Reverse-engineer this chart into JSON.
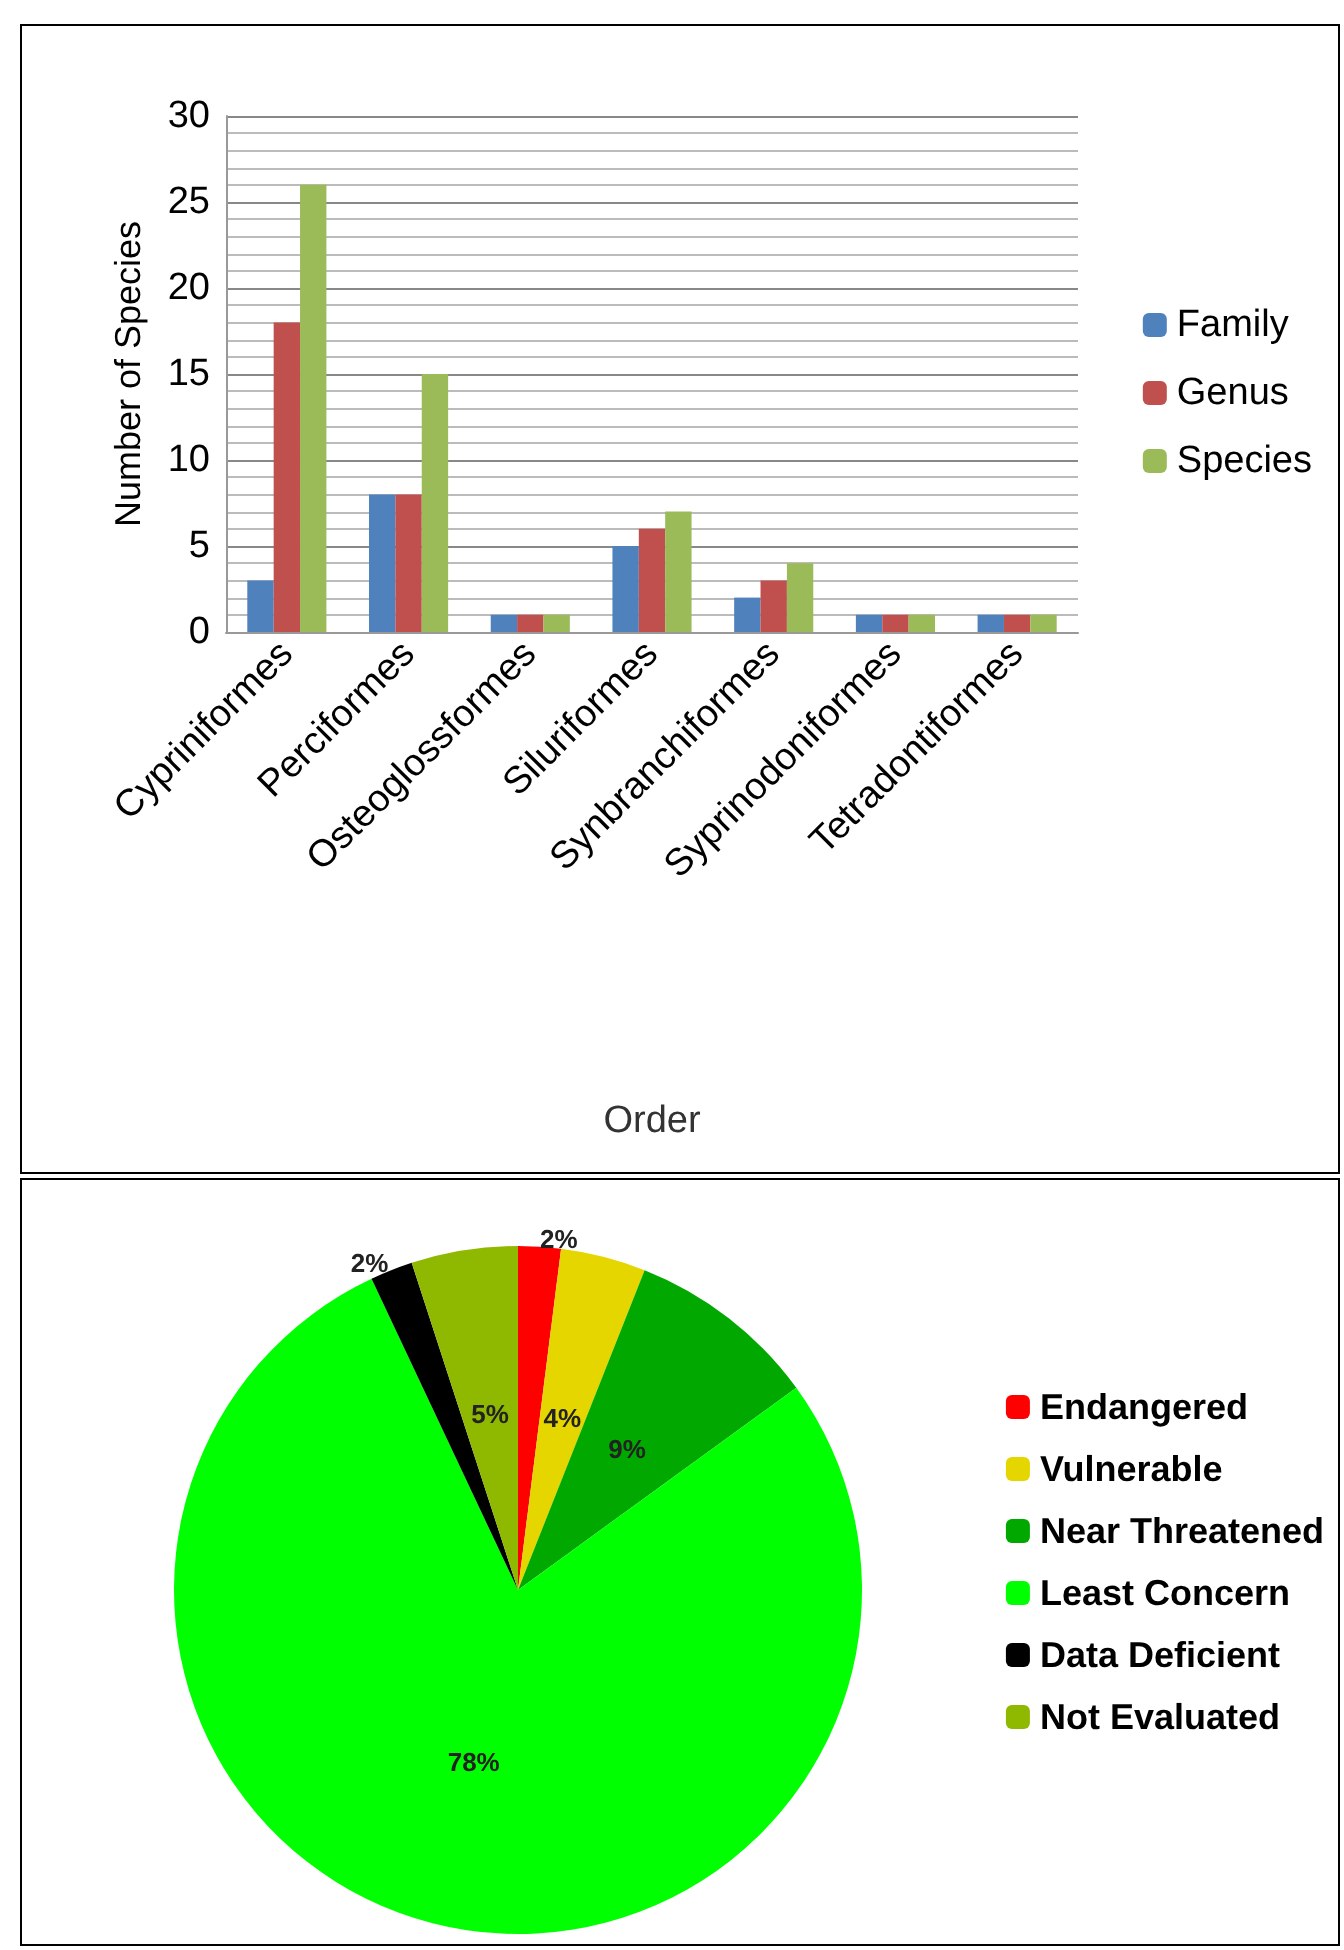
{
  "chart_data": [
    {
      "type": "bar",
      "xlabel": "Order",
      "ylabel": "Number of Species",
      "categories": [
        "Cypriniformes",
        "Perciformes",
        "Osteoglossformes",
        "Siluriformes",
        "Synbranchiformes",
        "Syprinodoniformes",
        "Tetradontiformes"
      ],
      "series": [
        {
          "name": "Family",
          "color": "#4f81bd",
          "values": [
            3,
            8,
            1,
            5,
            2,
            1,
            1
          ]
        },
        {
          "name": "Genus",
          "color": "#c0504d",
          "values": [
            18,
            8,
            1,
            6,
            3,
            1,
            1
          ]
        },
        {
          "name": "Species",
          "color": "#9bbb59",
          "values": [
            26,
            15,
            1,
            7,
            4,
            1,
            1
          ]
        }
      ],
      "ylim": [
        0,
        30
      ],
      "yticks": [
        0,
        5,
        10,
        15,
        20,
        25,
        30
      ],
      "grid": "y",
      "legend": "right"
    },
    {
      "type": "pie",
      "categories": [
        "Endangered",
        "Vulnerable",
        "Near Threatened",
        "Least Concern",
        "Data Deficient",
        "Not Evaluated"
      ],
      "values": [
        2,
        4,
        9,
        78,
        2,
        5
      ],
      "colors": [
        "#ff0000",
        "#e6d600",
        "#00a800",
        "#00ff00",
        "#000000",
        "#8fb800"
      ],
      "value_labels": [
        "2%",
        "4%",
        "9%",
        "78%",
        "2%",
        "5%"
      ],
      "legend": "right"
    }
  ]
}
